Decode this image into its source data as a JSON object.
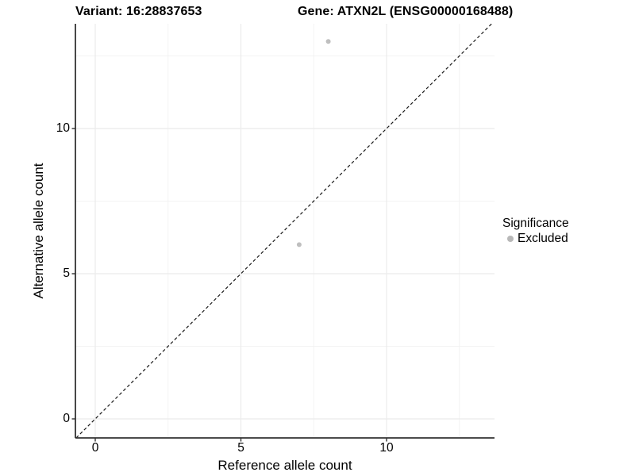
{
  "titles": {
    "variant": "Variant: 16:28837653",
    "gene": "Gene: ATXN2L (ENSG00000168488)"
  },
  "chart_data": {
    "type": "scatter",
    "title": "Variant: 16:28837653   Gene: ATXN2L (ENSG00000168488)",
    "xlabel": "Reference allele count",
    "ylabel": "Alternative allele count",
    "xlim": [
      -0.68,
      13.7
    ],
    "ylim": [
      -0.66,
      13.65
    ],
    "x_ticks": [
      0,
      5,
      10
    ],
    "y_ticks": [
      0,
      5,
      10
    ],
    "x_minor_gridlines": [
      2.5,
      7.5,
      12.5
    ],
    "y_minor_gridlines": [
      2.5,
      7.5,
      12.5
    ],
    "grid": true,
    "series": [
      {
        "name": "Excluded",
        "color": "#b8b8b8",
        "points": [
          {
            "x": 8,
            "y": 13
          },
          {
            "x": 7,
            "y": 6
          }
        ]
      }
    ],
    "abline": {
      "slope": 1,
      "intercept": 0,
      "style": "dashed",
      "color": "#1a1a1a"
    },
    "legend": {
      "position": "right",
      "title": "Significance",
      "entries": [
        {
          "label": "Excluded",
          "color": "#b8b8b8"
        }
      ]
    },
    "colors": {
      "background": "#ffffff",
      "grid_major": "#ebebeb",
      "grid_minor": "#f3f3f3",
      "axis_line": "#333333",
      "point": "#b8b8b8",
      "text": "#000000"
    }
  }
}
